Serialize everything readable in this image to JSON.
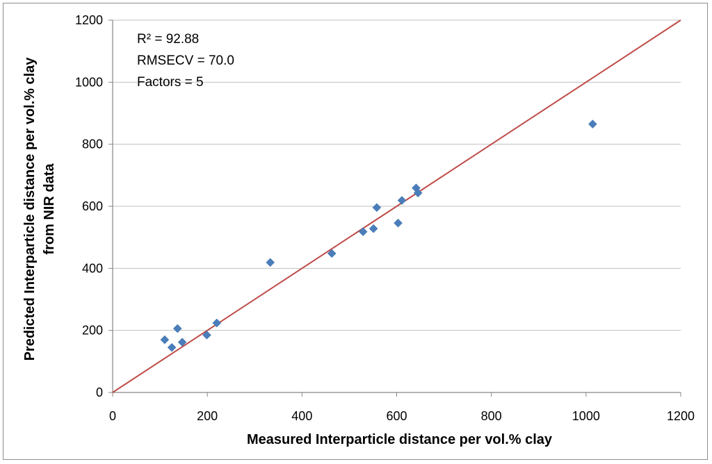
{
  "chart_data": {
    "type": "scatter",
    "xlabel": "Measured Interparticle distance per vol.% clay",
    "ylabel_lines": [
      "Predicted Interparticle distance per vol.% clay",
      "from NIR data"
    ],
    "xlim": [
      0,
      1200
    ],
    "ylim": [
      0,
      1200
    ],
    "x_ticks": [
      "0",
      "200",
      "400",
      "600",
      "800",
      "1000",
      "1200"
    ],
    "y_ticks": [
      "0",
      "200",
      "400",
      "600",
      "800",
      "1000",
      "1200"
    ],
    "grid": "horizontal",
    "annotations": [
      "R² = 92.88",
      "RMSECV = 70.0",
      "Factors = 5"
    ],
    "colors": {
      "points": "#4a7ebb",
      "line": "#be4b48",
      "grid": "#bfbfbf"
    },
    "reference_line": {
      "x": [
        0,
        1200
      ],
      "y": [
        0,
        1200
      ]
    },
    "series": [
      {
        "marker": "diamond",
        "points": [
          [
            110,
            170
          ],
          [
            125,
            145
          ],
          [
            137,
            206
          ],
          [
            147,
            162
          ],
          [
            199,
            185
          ],
          [
            220,
            224
          ],
          [
            333,
            419
          ],
          [
            463,
            448
          ],
          [
            529,
            518
          ],
          [
            551,
            528
          ],
          [
            558,
            596
          ],
          [
            603,
            546
          ],
          [
            611,
            619
          ],
          [
            641,
            659
          ],
          [
            645,
            643
          ],
          [
            1014,
            865
          ]
        ]
      }
    ]
  }
}
